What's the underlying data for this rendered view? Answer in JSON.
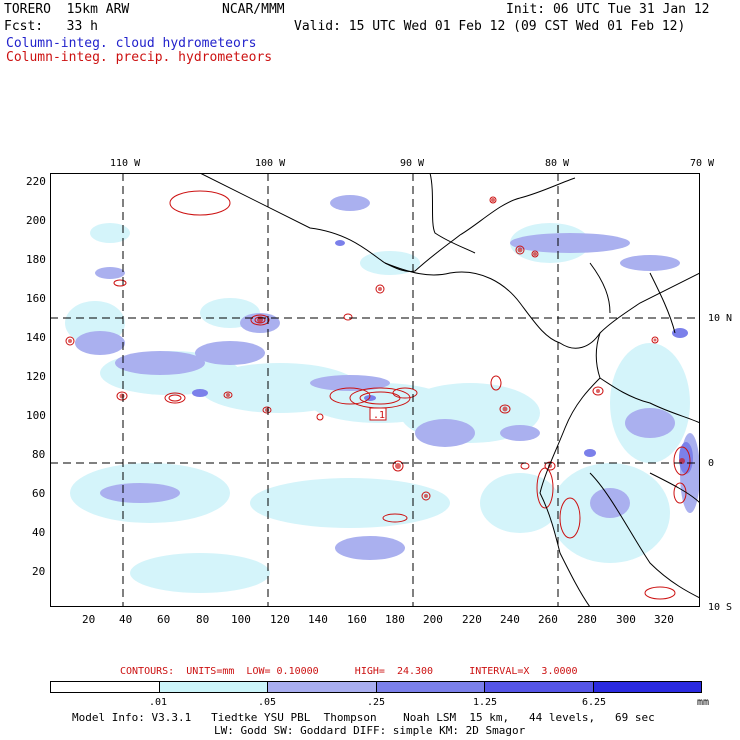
{
  "header": {
    "model": "TORERO  15km ARW",
    "org": "NCAR/MMM",
    "init": "Init: 06 UTC Tue 31 Jan 12",
    "fcst": "Fcst:   33 h",
    "valid": "Valid: 15 UTC Wed 01 Feb 12 (09 CST Wed 01 Feb 12)",
    "field1": "Column-integ. cloud hydrometeors",
    "field2": "Column-integ. precip. hydrometeors"
  },
  "axes": {
    "top_labels": [
      "110 W",
      "100 W",
      "90 W",
      "80 W",
      "70 W"
    ],
    "right_labels": [
      "10 N",
      "0",
      "10 S"
    ],
    "left_ticks": [
      "220",
      "200",
      "180",
      "160",
      "140",
      "120",
      "100",
      "80",
      "60",
      "40",
      "20"
    ],
    "bottom_ticks": [
      "20",
      "40",
      "60",
      "80",
      "100",
      "120",
      "140",
      "160",
      "180",
      "200",
      "220",
      "240",
      "260",
      "280",
      "300",
      "320"
    ]
  },
  "annotation": ".1",
  "contours_line": "CONTOURS:  UNITS=mm  LOW= 0.10000      HIGH=  24.300      INTERVAL=X  3.0000",
  "colorbar": {
    "labels": [
      ".01",
      ".05",
      ".25",
      "1.25",
      "6.25"
    ],
    "unit": "mm",
    "colors": [
      "#ffffff",
      "#ccf5fa",
      "#a9aef0",
      "#7b80ea",
      "#5555e6",
      "#2a2ae0"
    ]
  },
  "footer": {
    "line1": "Model Info: V3.3.1   Tiedtke YSU PBL  Thompson    Noah LSM  15 km,   44 levels,   69 sec",
    "line2": "LW: Godd SW: Goddard DIFF: simple KM: 2D Smagor"
  }
}
